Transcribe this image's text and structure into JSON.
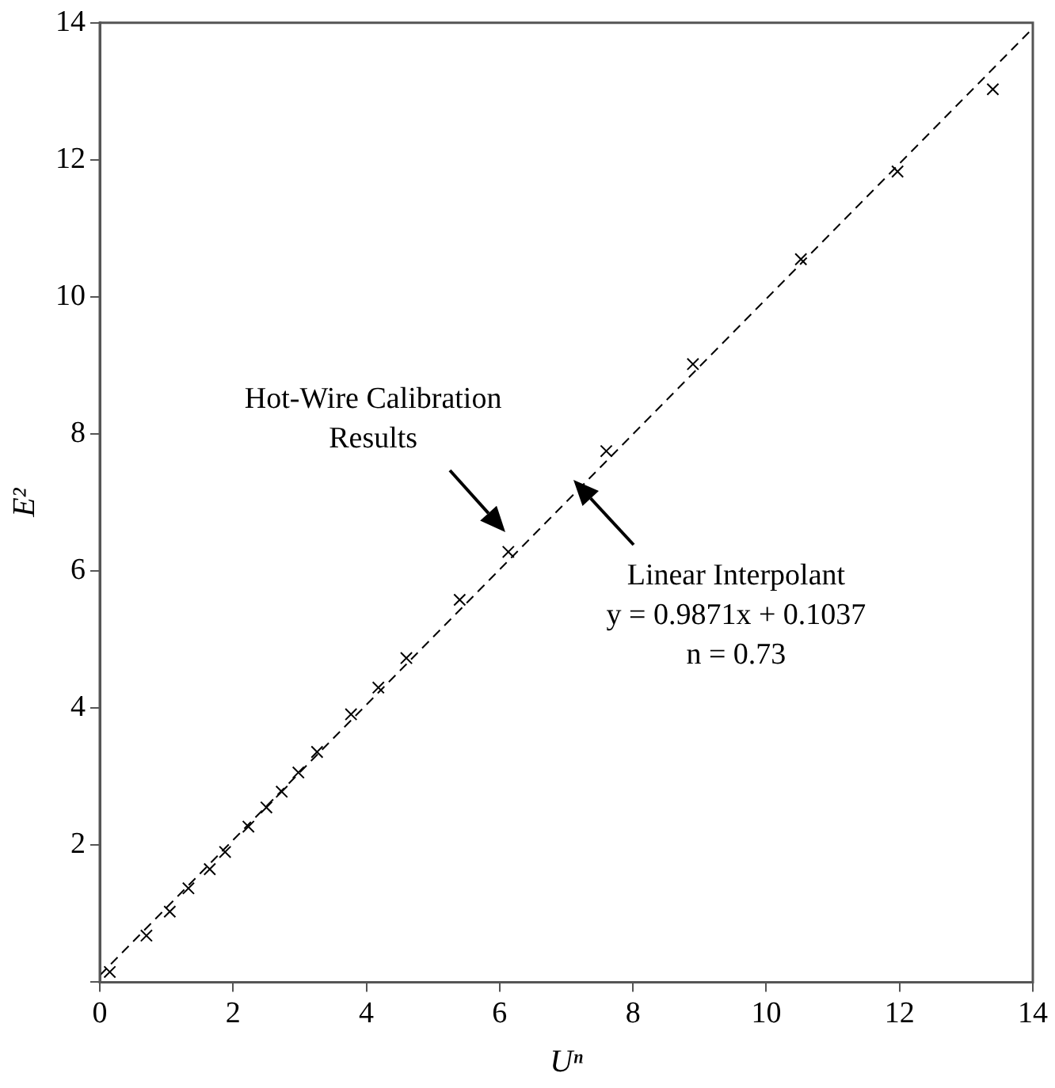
{
  "chart_data": {
    "type": "scatter",
    "xlabel": "Uⁿ",
    "ylabel": "E²",
    "xlim": [
      0,
      14
    ],
    "ylim": [
      0,
      14
    ],
    "xticks": [
      0,
      2,
      4,
      6,
      8,
      10,
      12,
      14
    ],
    "yticks": [
      {
        "value": 0,
        "label": null
      },
      2,
      4,
      6,
      8,
      10,
      12,
      14
    ],
    "grid": false,
    "legend": false,
    "series": [
      {
        "type": "scatter",
        "marker": "cross",
        "color": "#000000",
        "x": [
          0.15,
          0.7,
          1.05,
          1.33,
          1.65,
          1.88,
          2.23,
          2.5,
          2.73,
          2.98,
          3.26,
          3.77,
          4.18,
          4.6,
          5.4,
          6.13,
          7.6,
          8.9,
          10.52,
          11.97,
          13.4
        ],
        "values": [
          0.15,
          0.68,
          1.03,
          1.37,
          1.65,
          1.9,
          2.27,
          2.55,
          2.78,
          3.06,
          3.36,
          3.91,
          4.3,
          4.73,
          5.58,
          6.28,
          7.75,
          9.02,
          10.55,
          11.83,
          13.03
        ]
      },
      {
        "type": "line",
        "marker": "none",
        "line_style": "dashed",
        "color": "#000000",
        "x": [
          0,
          14
        ],
        "values": [
          0.1,
          13.92
        ]
      }
    ],
    "annotations": [
      "Hot-Wire Calibration\nResults",
      "Linear Interpolant\ny = 0.9871x + 0.1037\nn = 0.73"
    ]
  }
}
